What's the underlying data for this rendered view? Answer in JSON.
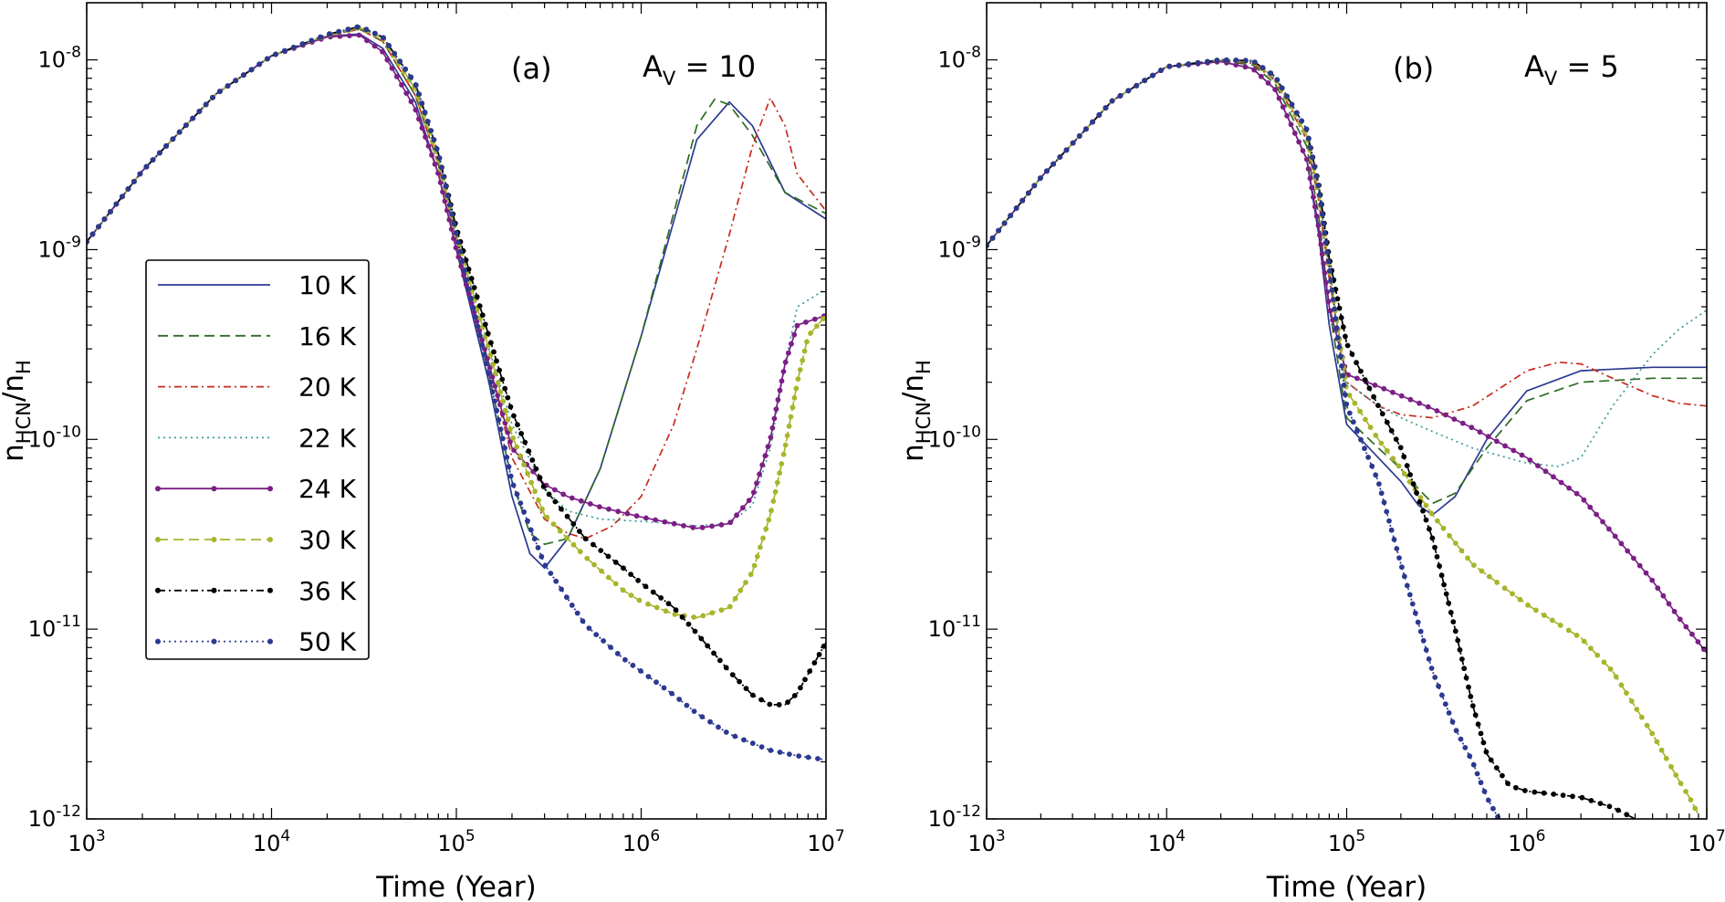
{
  "figure": {
    "legend_entries": [
      "10 K",
      "16 K",
      "20 K",
      "22 K",
      "24 K",
      "30 K",
      "36 K",
      "50 K"
    ]
  },
  "series_styles": [
    {
      "name": "10 K",
      "color": "#2b3990",
      "dash": "",
      "markers": false
    },
    {
      "name": "16 K",
      "color": "#2e6b25",
      "dash": "11,6",
      "markers": false
    },
    {
      "name": "20 K",
      "color": "#c62b1e",
      "dash": "8,4,2,4",
      "markers": false
    },
    {
      "name": "22 K",
      "color": "#3a9a96",
      "dash": "2,4",
      "markers": false
    },
    {
      "name": "24 K",
      "color": "#7b1f85",
      "dash": "",
      "markers": true
    },
    {
      "name": "30 K",
      "color": "#a8b52c",
      "dash": "11,6",
      "markers": true
    },
    {
      "name": "36 K",
      "color": "#000000",
      "dash": "8,4,2,4",
      "markers": true
    },
    {
      "name": "50 K",
      "color": "#2b3990",
      "dash": "2,4",
      "markers": true
    }
  ],
  "chart_data": [
    {
      "type": "line",
      "panel": "(a)",
      "annotation": {
        "base": "A",
        "sub": "V",
        "rest": " = 10"
      },
      "xlabel": "Time (Year)",
      "ylabel": {
        "base": "n",
        "sub1": "HCN",
        "mid": "/n",
        "sub2": "H"
      },
      "xscale": "log",
      "yscale": "log",
      "xlim": [
        1000,
        10000000
      ],
      "ylim": [
        1e-12,
        2e-08
      ],
      "x_ticks": [
        3,
        4,
        5,
        6,
        7
      ],
      "y_ticks": [
        -12,
        -11,
        -10,
        -9,
        -8
      ],
      "tick_base": "10",
      "legend": "left",
      "series": [
        {
          "name": "10 K",
          "x": [
            1000,
            2000,
            5000,
            10000,
            20000,
            30000,
            40000,
            60000,
            80000,
            100000,
            150000,
            200000,
            250000,
            300000,
            400000,
            600000,
            1000000,
            2000000,
            3000000,
            4000000,
            6000000,
            10000000
          ],
          "y": [
            1.1e-09,
            2.6e-09,
            6.6e-09,
            1.05e-08,
            1.33e-08,
            1.37e-08,
            1.15e-08,
            6e-09,
            2.5e-09,
            1e-09,
            2e-10,
            5e-11,
            2.5e-11,
            2.1e-11,
            3e-11,
            7e-11,
            3.5e-10,
            3.8e-09,
            6e-09,
            4.5e-09,
            2e-09,
            1.45e-09
          ]
        },
        {
          "name": "16 K",
          "x": [
            1000,
            2000,
            5000,
            10000,
            20000,
            30000,
            40000,
            60000,
            80000,
            100000,
            150000,
            200000,
            250000,
            300000,
            400000,
            600000,
            1000000,
            2000000,
            2500000,
            3000000,
            4000000,
            6000000,
            10000000
          ],
          "y": [
            1.1e-09,
            2.6e-09,
            6.6e-09,
            1.05e-08,
            1.35e-08,
            1.45e-08,
            1.25e-08,
            6.5e-09,
            2.8e-09,
            1.1e-09,
            2.2e-10,
            6e-11,
            3.2e-11,
            2.8e-11,
            3e-11,
            7e-11,
            3.5e-10,
            4.5e-09,
            6.2e-09,
            5.8e-09,
            4e-09,
            2e-09,
            1.55e-09
          ]
        },
        {
          "name": "20 K",
          "x": [
            1000,
            2000,
            5000,
            10000,
            20000,
            30000,
            40000,
            60000,
            80000,
            100000,
            150000,
            200000,
            300000,
            400000,
            500000,
            700000,
            1000000,
            1500000,
            2000000,
            3000000,
            4000000,
            5000000,
            6000000,
            7000000,
            10000000
          ],
          "y": [
            1.1e-09,
            2.6e-09,
            6.6e-09,
            1.05e-08,
            1.35e-08,
            1.45e-08,
            1.25e-08,
            6.5e-09,
            2.8e-09,
            1.1e-09,
            2.5e-10,
            8e-11,
            3.8e-11,
            3.2e-11,
            3e-11,
            3.5e-11,
            5e-11,
            1.2e-10,
            3e-10,
            1.2e-09,
            3.5e-09,
            6.3e-09,
            4.5e-09,
            2.5e-09,
            1.6e-09
          ]
        },
        {
          "name": "22 K",
          "x": [
            1000,
            2000,
            5000,
            10000,
            20000,
            30000,
            40000,
            60000,
            80000,
            100000,
            150000,
            200000,
            300000,
            400000,
            600000,
            1000000,
            2000000,
            3000000,
            4000000,
            5000000,
            6000000,
            7000000,
            10000000
          ],
          "y": [
            1.1e-09,
            2.6e-09,
            6.6e-09,
            1.05e-08,
            1.35e-08,
            1.48e-08,
            1.3e-08,
            7e-09,
            3e-09,
            1.2e-09,
            3e-10,
            1.2e-10,
            5.5e-11,
            4.2e-11,
            3.8e-11,
            3.7e-11,
            3.5e-11,
            3.6e-11,
            4.5e-11,
            9e-11,
            2.5e-10,
            5e-10,
            6.2e-10
          ]
        },
        {
          "name": "24 K",
          "x": [
            1000,
            2000,
            5000,
            10000,
            20000,
            30000,
            40000,
            60000,
            80000,
            100000,
            150000,
            200000,
            300000,
            400000,
            600000,
            1000000,
            2000000,
            3000000,
            4000000,
            5000000,
            6000000,
            7000000,
            10000000
          ],
          "y": [
            1.1e-09,
            2.6e-09,
            6.6e-09,
            1.05e-08,
            1.32e-08,
            1.35e-08,
            1.1e-08,
            5.5e-09,
            2.5e-09,
            1e-09,
            2.5e-10,
            9e-11,
            5.8e-11,
            5e-11,
            4.4e-11,
            3.9e-11,
            3.4e-11,
            3.6e-11,
            5e-11,
            1e-10,
            2.5e-10,
            4e-10,
            4.5e-10
          ]
        },
        {
          "name": "30 K",
          "x": [
            1000,
            2000,
            5000,
            10000,
            20000,
            30000,
            40000,
            60000,
            80000,
            100000,
            150000,
            200000,
            300000,
            500000,
            800000,
            1000000,
            1500000,
            2000000,
            3000000,
            4000000,
            5000000,
            6000000,
            7000000,
            8000000,
            10000000
          ],
          "y": [
            1.1e-09,
            2.6e-09,
            6.6e-09,
            1.05e-08,
            1.35e-08,
            1.48e-08,
            1.3e-08,
            7e-09,
            3e-09,
            1.2e-09,
            3e-10,
            1.05e-10,
            4e-11,
            2.4e-11,
            1.6e-11,
            1.4e-11,
            1.2e-11,
            1.15e-11,
            1.3e-11,
            2e-11,
            4e-11,
            9e-11,
            2e-10,
            3.5e-10,
            4.5e-10
          ]
        },
        {
          "name": "36 K",
          "x": [
            1000,
            2000,
            5000,
            10000,
            20000,
            30000,
            40000,
            60000,
            80000,
            100000,
            150000,
            200000,
            300000,
            500000,
            800000,
            1000000,
            1500000,
            2000000,
            3000000,
            4000000,
            5000000,
            6000000,
            7000000,
            8000000,
            10000000
          ],
          "y": [
            1.1e-09,
            2.6e-09,
            6.6e-09,
            1.05e-08,
            1.36e-08,
            1.5e-08,
            1.32e-08,
            7.5e-09,
            3.2e-09,
            1.3e-09,
            3.5e-10,
            1.4e-10,
            5.5e-11,
            3e-11,
            2.1e-11,
            1.75e-11,
            1.3e-11,
            9.5e-12,
            6e-12,
            4.5e-12,
            4e-12,
            4e-12,
            4.6e-12,
            5.8e-12,
            8.5e-12
          ]
        },
        {
          "name": "50 K",
          "x": [
            1000,
            2000,
            5000,
            10000,
            20000,
            30000,
            40000,
            60000,
            80000,
            100000,
            150000,
            200000,
            300000,
            500000,
            800000,
            1000000,
            1500000,
            2000000,
            3000000,
            5000000,
            7000000,
            10000000
          ],
          "y": [
            1.1e-09,
            2.6e-09,
            6.6e-09,
            1.05e-08,
            1.36e-08,
            1.5e-08,
            1.32e-08,
            7.5e-09,
            3.2e-09,
            1.2e-09,
            2.2e-10,
            6e-11,
            2.2e-11,
            1.05e-11,
            7e-12,
            6e-12,
            4.5e-12,
            3.6e-12,
            2.8e-12,
            2.3e-12,
            2.15e-12,
            2.05e-12
          ]
        }
      ]
    },
    {
      "type": "line",
      "panel": "(b)",
      "annotation": {
        "base": "A",
        "sub": "V",
        "rest": " = 5"
      },
      "xlabel": "Time (Year)",
      "ylabel": {
        "base": "n",
        "sub1": "HCN",
        "mid": "/n",
        "sub2": "H"
      },
      "xscale": "log",
      "yscale": "log",
      "xlim": [
        1000,
        10000000
      ],
      "ylim": [
        1e-12,
        2e-08
      ],
      "x_ticks": [
        3,
        4,
        5,
        6,
        7
      ],
      "y_ticks": [
        -12,
        -11,
        -10,
        -9,
        -8
      ],
      "tick_base": "10",
      "series": [
        {
          "name": "10 K",
          "x": [
            1000,
            2000,
            5000,
            10000,
            20000,
            30000,
            40000,
            60000,
            70000,
            80000,
            100000,
            150000,
            200000,
            250000,
            300000,
            400000,
            600000,
            1000000,
            2000000,
            5000000,
            10000000
          ],
          "y": [
            1.05e-09,
            2.4e-09,
            6.1e-09,
            9.2e-09,
            9.8e-09,
            9e-09,
            7e-09,
            3e-09,
            1.2e-09,
            4e-10,
            1.2e-10,
            8e-11,
            6e-11,
            4.5e-11,
            4e-11,
            5e-11,
            1e-10,
            1.8e-10,
            2.3e-10,
            2.4e-10,
            2.4e-10
          ]
        },
        {
          "name": "16 K",
          "x": [
            1000,
            2000,
            5000,
            10000,
            20000,
            30000,
            40000,
            60000,
            70000,
            80000,
            100000,
            150000,
            200000,
            250000,
            300000,
            400000,
            600000,
            1000000,
            2000000,
            5000000,
            10000000
          ],
          "y": [
            1.05e-09,
            2.4e-09,
            6.1e-09,
            9.2e-09,
            9.9e-09,
            9.4e-09,
            7.5e-09,
            3.5e-09,
            1.5e-09,
            5e-10,
            1.3e-10,
            9e-11,
            7e-11,
            5.5e-11,
            4.6e-11,
            5.2e-11,
            9e-11,
            1.6e-10,
            2e-10,
            2.1e-10,
            2.1e-10
          ]
        },
        {
          "name": "20 K",
          "x": [
            1000,
            2000,
            5000,
            10000,
            20000,
            30000,
            40000,
            60000,
            70000,
            80000,
            100000,
            150000,
            200000,
            300000,
            500000,
            1000000,
            1500000,
            2000000,
            3000000,
            5000000,
            7000000,
            10000000
          ],
          "y": [
            1.05e-09,
            2.4e-09,
            6.1e-09,
            9.2e-09,
            1e-08,
            9.6e-09,
            7.8e-09,
            3.8e-09,
            1.8e-09,
            7e-10,
            2e-10,
            1.5e-10,
            1.35e-10,
            1.3e-10,
            1.5e-10,
            2.3e-10,
            2.55e-10,
            2.5e-10,
            2.1e-10,
            1.7e-10,
            1.55e-10,
            1.5e-10
          ]
        },
        {
          "name": "22 K",
          "x": [
            1000,
            2000,
            5000,
            10000,
            20000,
            30000,
            40000,
            60000,
            70000,
            80000,
            100000,
            150000,
            200000,
            300000,
            500000,
            1000000,
            1500000,
            2000000,
            3000000,
            5000000,
            7000000,
            10000000
          ],
          "y": [
            1.05e-09,
            2.4e-09,
            6.1e-09,
            9.2e-09,
            1e-08,
            9.7e-09,
            8e-09,
            4e-09,
            2e-09,
            8e-10,
            2e-10,
            1.5e-10,
            1.3e-10,
            1.1e-10,
            9e-11,
            7.5e-11,
            7.2e-11,
            8e-11,
            1.5e-10,
            2.8e-10,
            3.8e-10,
            4.8e-10
          ]
        },
        {
          "name": "24 K",
          "x": [
            1000,
            2000,
            5000,
            10000,
            20000,
            30000,
            40000,
            60000,
            70000,
            80000,
            100000,
            150000,
            200000,
            300000,
            500000,
            1000000,
            2000000,
            3000000,
            5000000,
            7000000,
            10000000
          ],
          "y": [
            1.05e-09,
            2.4e-09,
            6.1e-09,
            9.2e-09,
            9.8e-09,
            9e-09,
            7e-09,
            3e-09,
            1.3e-09,
            5e-10,
            2.2e-10,
            1.9e-10,
            1.7e-10,
            1.45e-10,
            1.15e-10,
            8e-11,
            5e-11,
            3.2e-11,
            1.8e-11,
            1.15e-11,
            7.5e-12
          ]
        },
        {
          "name": "30 K",
          "x": [
            1000,
            2000,
            5000,
            10000,
            20000,
            30000,
            40000,
            60000,
            70000,
            80000,
            100000,
            150000,
            200000,
            300000,
            500000,
            1000000,
            2000000,
            3000000,
            5000000,
            7000000,
            8000000,
            9000000
          ],
          "y": [
            1.05e-09,
            2.4e-09,
            6.1e-09,
            9.2e-09,
            1e-08,
            9.8e-09,
            8e-09,
            4e-09,
            2e-09,
            8e-10,
            1.8e-10,
            1e-10,
            7e-11,
            4e-11,
            2.2e-11,
            1.35e-11,
            9e-12,
            6e-12,
            2.8e-12,
            1.6e-12,
            1.3e-12,
            1.05e-12
          ]
        },
        {
          "name": "36 K",
          "x": [
            1000,
            2000,
            5000,
            10000,
            20000,
            30000,
            40000,
            60000,
            70000,
            80000,
            100000,
            150000,
            200000,
            300000,
            400000,
            500000,
            600000,
            800000,
            1000000,
            2000000,
            3000000,
            4000000
          ],
          "y": [
            1.05e-09,
            2.4e-09,
            6.1e-09,
            9.2e-09,
            1e-08,
            9.9e-09,
            8.2e-09,
            4.3e-09,
            2.2e-09,
            9e-10,
            3.2e-10,
            1.5e-10,
            9e-11,
            3e-11,
            1e-11,
            4e-12,
            2.2e-12,
            1.5e-12,
            1.4e-12,
            1.3e-12,
            1.15e-12,
            1e-12
          ]
        },
        {
          "name": "50 K",
          "x": [
            1000,
            2000,
            5000,
            10000,
            20000,
            30000,
            40000,
            60000,
            70000,
            80000,
            100000,
            150000,
            200000,
            300000,
            400000,
            500000,
            600000,
            700000
          ],
          "y": [
            1.05e-09,
            2.4e-09,
            6.1e-09,
            9.2e-09,
            1e-08,
            9.9e-09,
            8.2e-09,
            4.3e-09,
            2.1e-09,
            8e-10,
            1.5e-10,
            6e-11,
            2.2e-11,
            6e-12,
            3e-12,
            2e-12,
            1.3e-12,
            1e-12
          ]
        }
      ]
    }
  ]
}
